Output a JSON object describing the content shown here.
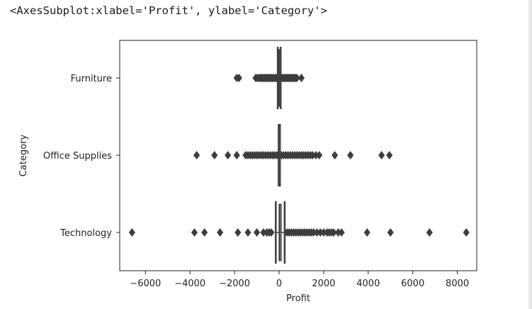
{
  "output_repr": "<AxesSubplot:xlabel='Profit', ylabel='Category'>",
  "chart_data": {
    "type": "boxplot",
    "orientation": "horizontal",
    "xlabel": "Profit",
    "ylabel": "Category",
    "categories": [
      "Furniture",
      "Office Supplies",
      "Technology"
    ],
    "xlim": [
      -7000,
      9000
    ],
    "xticks": [
      -6000,
      -4000,
      -2000,
      0,
      2000,
      4000,
      6000,
      8000
    ],
    "xtick_labels": [
      "−6000",
      "−4000",
      "−2000",
      "0",
      "2000",
      "4000",
      "6000",
      "8000"
    ],
    "box_color": "#8a8a8a",
    "boxes": [
      {
        "category": "Furniture",
        "q1": -10,
        "median": 8,
        "q3": 25,
        "whisker_low": -60,
        "whisker_high": 70,
        "outliers": [
          -1900,
          -1800,
          -1050,
          -980,
          -900,
          -850,
          -800,
          -750,
          -700,
          -650,
          -600,
          -550,
          -500,
          -450,
          -400,
          -350,
          -300,
          -250,
          -200,
          -150,
          -100,
          100,
          150,
          200,
          250,
          300,
          350,
          400,
          450,
          500,
          550,
          600,
          650,
          700,
          750,
          800,
          1000
        ]
      },
      {
        "category": "Office Supplies",
        "q1": 2,
        "median": 7,
        "q3": 18,
        "whisker_low": -20,
        "whisker_high": 40,
        "outliers": [
          -3700,
          -2900,
          -2300,
          -1900,
          -1500,
          -1400,
          -1300,
          -1200,
          -1100,
          -1000,
          -900,
          -800,
          -700,
          -600,
          -500,
          -400,
          -300,
          -200,
          -100,
          100,
          200,
          300,
          400,
          500,
          600,
          700,
          800,
          900,
          1000,
          1100,
          1200,
          1300,
          1400,
          1500,
          1650,
          1800,
          2500,
          3200,
          4600,
          4950
        ]
      },
      {
        "category": "Technology",
        "q1": -5,
        "median": 25,
        "q3": 100,
        "whisker_low": -150,
        "whisker_high": 250,
        "outliers": [
          -6600,
          -3800,
          -3350,
          -2650,
          -1850,
          -1400,
          -1000,
          -700,
          -550,
          -450,
          -350,
          350,
          450,
          550,
          650,
          750,
          850,
          950,
          1050,
          1150,
          1250,
          1350,
          1450,
          1550,
          1700,
          1850,
          2000,
          2150,
          2250,
          2350,
          2450,
          2650,
          2800,
          3950,
          5000,
          6750,
          8400
        ]
      }
    ]
  }
}
